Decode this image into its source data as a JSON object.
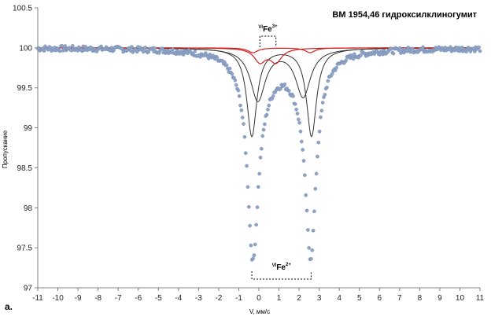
{
  "chart_data": {
    "type": "scatter",
    "title": "ВМ 1954,46 гидроксилклиногумит",
    "xlabel": "V, мм/с",
    "ylabel": "Пропускание",
    "xlim": [
      -11,
      11
    ],
    "ylim": [
      97,
      100.5
    ],
    "xticks": [
      "-11",
      "-10",
      "-9",
      "-8",
      "-7",
      "-6",
      "-5",
      "-4",
      "-3",
      "-2",
      "-1",
      "0",
      "1",
      "2",
      "3",
      "4",
      "5",
      "6",
      "7",
      "8",
      "9",
      "10",
      "11"
    ],
    "yticks": [
      "97",
      "97.5",
      "98",
      "98.5",
      "99",
      "99.5",
      "100",
      "100.5"
    ],
    "grid": false,
    "legend": "none",
    "panel_label": "а.",
    "annotations": [
      {
        "pre": "VI",
        "text": "Fe",
        "sup": "3+",
        "span_x": [
          0.05,
          0.85
        ]
      },
      {
        "pre": "VI",
        "text": "Fe",
        "sup": "2+",
        "span_x": [
          -0.35,
          2.6
        ]
      }
    ],
    "series": [
      {
        "kind": "measured points",
        "color": "#8ea3c6",
        "baseline": 100.0,
        "lines": [
          {
            "center": -0.3,
            "width": 0.32,
            "depth": 2.3
          },
          {
            "center": 2.58,
            "width": 0.32,
            "depth": 2.3
          },
          {
            "center": 0.05,
            "width": 0.9,
            "depth": 0.35
          },
          {
            "center": 2.25,
            "width": 0.9,
            "depth": 0.3
          }
        ]
      },
      {
        "kind": "fit doublet Fe2+ (1)",
        "color": "#333333",
        "lines": [
          {
            "center": -0.35,
            "width": 0.3,
            "depth": 1.1
          },
          {
            "center": 2.62,
            "width": 0.3,
            "depth": 1.1
          }
        ]
      },
      {
        "kind": "fit doublet Fe2+ (2)",
        "color": "#333333",
        "lines": [
          {
            "center": -0.05,
            "width": 0.45,
            "depth": 0.65
          },
          {
            "center": 2.2,
            "width": 0.45,
            "depth": 0.6
          }
        ]
      },
      {
        "kind": "fit doublet Fe3+",
        "color": "#d22020",
        "lines": [
          {
            "center": 0.05,
            "width": 0.35,
            "depth": 0.17
          },
          {
            "center": 0.85,
            "width": 0.35,
            "depth": 0.17
          }
        ]
      },
      {
        "kind": "envelope",
        "color": "#d22020",
        "lines": [
          {
            "center": -0.3,
            "width": 0.3,
            "depth": 0.06
          },
          {
            "center": 2.55,
            "width": 0.3,
            "depth": 0.06
          }
        ]
      }
    ]
  }
}
